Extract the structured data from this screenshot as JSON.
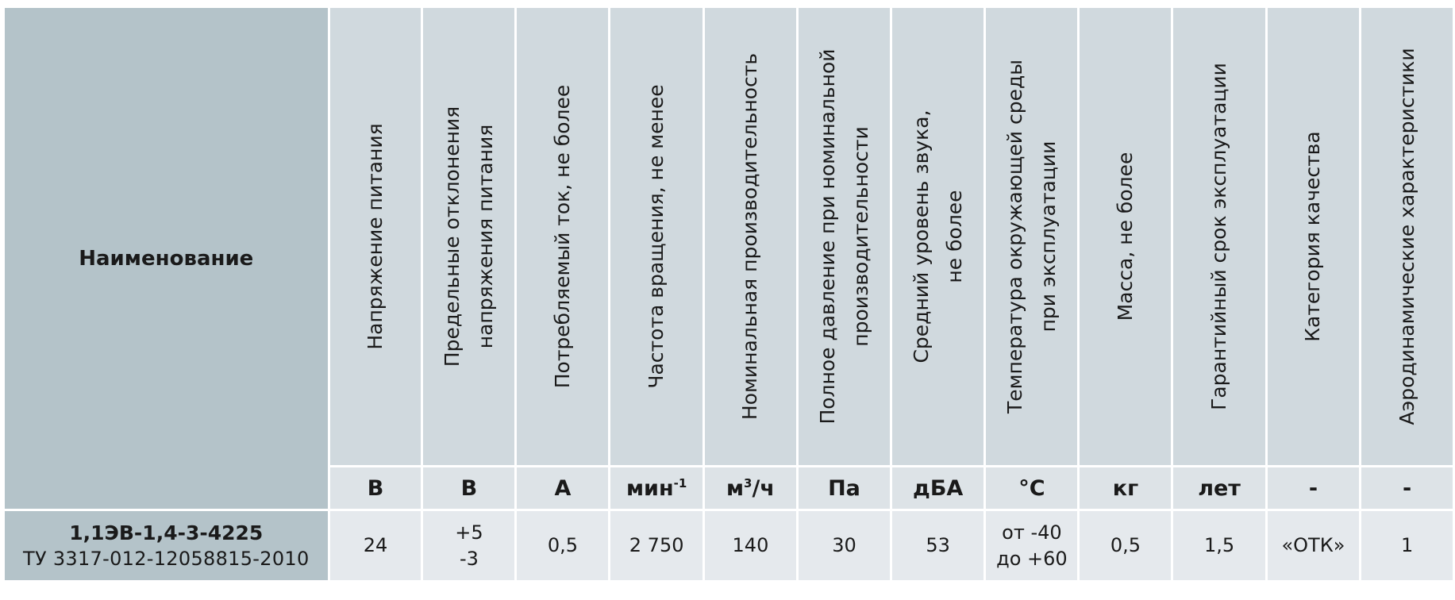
{
  "header": {
    "name_label": "Наименование",
    "params": [
      {
        "line1": "Напряжение  питания",
        "line2": ""
      },
      {
        "line1": "Предельные отклонения",
        "line2": "напряжения питания"
      },
      {
        "line1": "Потребляемый ток, не более",
        "line2": ""
      },
      {
        "line1": "Частота вращения, не менее",
        "line2": ""
      },
      {
        "line1": "Номинальная производительность",
        "line2": ""
      },
      {
        "line1": "Полное давление при номинальной",
        "line2": "производительности"
      },
      {
        "line1": "Средний уровень звука,",
        "line2": "не более"
      },
      {
        "line1": "Температура окружающей среды",
        "line2": "при эксплуатации"
      },
      {
        "line1": "Масса, не более",
        "line2": ""
      },
      {
        "line1": "Гарантийный срок эксплуатации",
        "line2": ""
      },
      {
        "line1": "Категория качества",
        "line2": ""
      },
      {
        "line1": "Аэродинамические характеристики",
        "line2": ""
      }
    ]
  },
  "units": [
    {
      "text": "В",
      "sup": ""
    },
    {
      "text": "В",
      "sup": ""
    },
    {
      "text": "А",
      "sup": ""
    },
    {
      "text": "мин",
      "sup": "-1"
    },
    {
      "text": "м",
      "sup": "3",
      "after": "/ч"
    },
    {
      "text": "Па",
      "sup": ""
    },
    {
      "text": "дБА",
      "sup": ""
    },
    {
      "text": "°С",
      "sup": ""
    },
    {
      "text": "кг",
      "sup": ""
    },
    {
      "text": "лет",
      "sup": ""
    },
    {
      "text": "-",
      "sup": ""
    },
    {
      "text": "-",
      "sup": ""
    }
  ],
  "row": {
    "model": "1,1ЭВ-1,4-3-4225",
    "tu": "ТУ 3317-012-12058815-2010",
    "values": [
      {
        "line1": "24",
        "line2": ""
      },
      {
        "line1": "+5",
        "line2": "-3"
      },
      {
        "line1": "0,5",
        "line2": ""
      },
      {
        "line1": "2 750",
        "line2": ""
      },
      {
        "line1": "140",
        "line2": ""
      },
      {
        "line1": "30",
        "line2": ""
      },
      {
        "line1": "53",
        "line2": ""
      },
      {
        "line1": "от -40",
        "line2": "до +60"
      },
      {
        "line1": "0,5",
        "line2": ""
      },
      {
        "line1": "1,5",
        "line2": ""
      },
      {
        "line1": "«ОТК»",
        "line2": ""
      },
      {
        "line1": "1",
        "line2": ""
      }
    ]
  }
}
